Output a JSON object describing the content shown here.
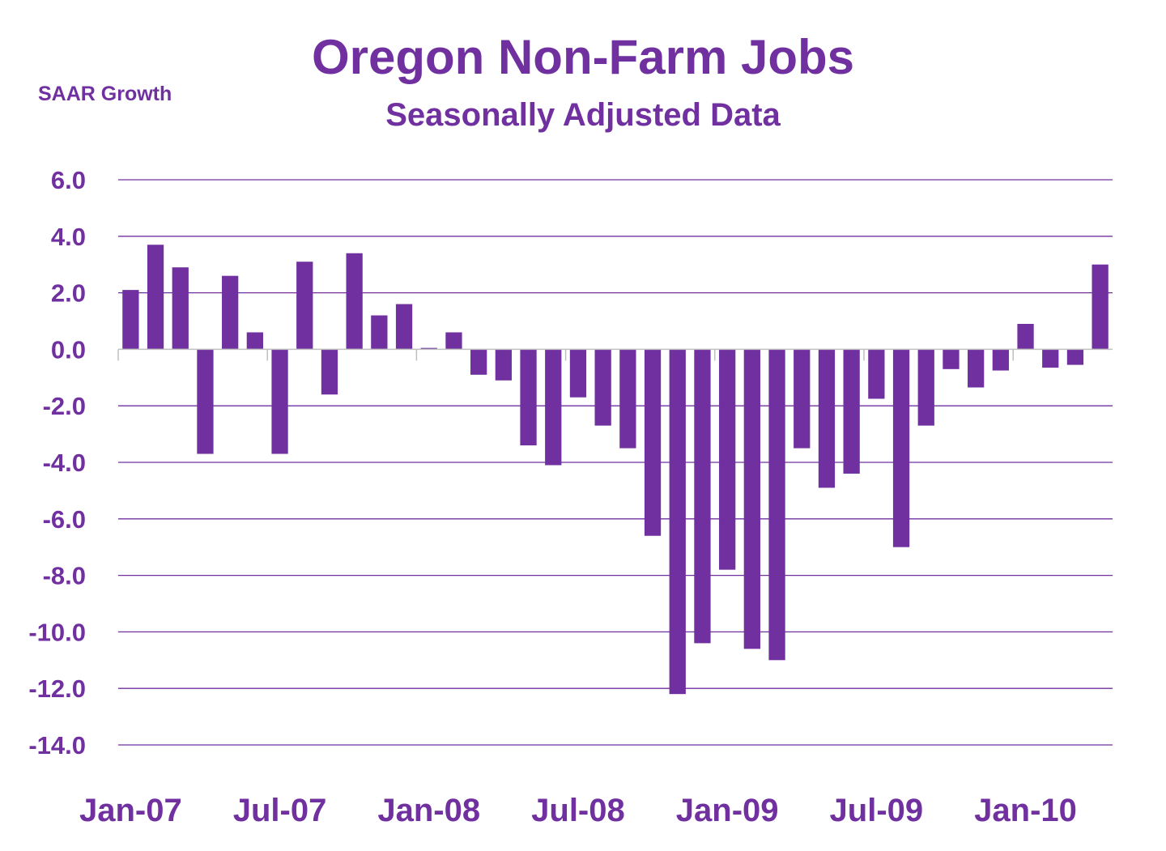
{
  "chart_data": {
    "type": "bar",
    "title": "Oregon Non-Farm Jobs",
    "subtitle": "Seasonally Adjusted Data",
    "ylabel": "SAAR Growth",
    "xlabel": "",
    "ylim": [
      -14,
      6
    ],
    "yticks": [
      6,
      4,
      2,
      0,
      -2,
      -4,
      -6,
      -8,
      -10,
      -12,
      -14
    ],
    "ytick_labels": [
      "6.0",
      "4.0",
      "2.0",
      "0.0",
      "-2.0",
      "-4.0",
      "-6.0",
      "-8.0",
      "-10.0",
      "-12.0",
      "-14.0"
    ],
    "grid": true,
    "legend": "none",
    "bar_color": "#7030A0",
    "grid_color": "#7030A0",
    "text_color": "#7030A0",
    "categories": [
      "Jan-07",
      "Feb-07",
      "Mar-07",
      "Apr-07",
      "May-07",
      "Jun-07",
      "Jul-07",
      "Aug-07",
      "Sep-07",
      "Oct-07",
      "Nov-07",
      "Dec-07",
      "Jan-08",
      "Feb-08",
      "Mar-08",
      "Apr-08",
      "May-08",
      "Jun-08",
      "Jul-08",
      "Aug-08",
      "Sep-08",
      "Oct-08",
      "Nov-08",
      "Dec-08",
      "Jan-09",
      "Feb-09",
      "Mar-09",
      "Apr-09",
      "May-09",
      "Jun-09",
      "Jul-09",
      "Aug-09",
      "Sep-09",
      "Oct-09",
      "Nov-09",
      "Dec-09",
      "Jan-10",
      "Feb-10",
      "Mar-10",
      "Apr-10"
    ],
    "values": [
      2.1,
      3.7,
      2.9,
      -3.7,
      2.6,
      0.6,
      -3.7,
      3.1,
      -1.6,
      3.4,
      1.2,
      1.6,
      0.05,
      0.6,
      -0.9,
      -1.1,
      -3.4,
      -4.1,
      -1.7,
      -2.7,
      -3.5,
      -6.6,
      -12.2,
      -10.4,
      -7.8,
      -10.6,
      -11.0,
      -3.5,
      -4.9,
      -4.4,
      -1.75,
      -7.0,
      -2.7,
      -0.7,
      -1.35,
      -0.75,
      0.9,
      -0.65,
      -0.55,
      3.0
    ],
    "xtick_labels": [
      {
        "label": "Jan-07",
        "index": 0
      },
      {
        "label": "Jul-07",
        "index": 6
      },
      {
        "label": "Jan-08",
        "index": 12
      },
      {
        "label": "Jul-08",
        "index": 18
      },
      {
        "label": "Jan-09",
        "index": 24
      },
      {
        "label": "Jul-09",
        "index": 30
      },
      {
        "label": "Jan-10",
        "index": 36
      }
    ]
  }
}
